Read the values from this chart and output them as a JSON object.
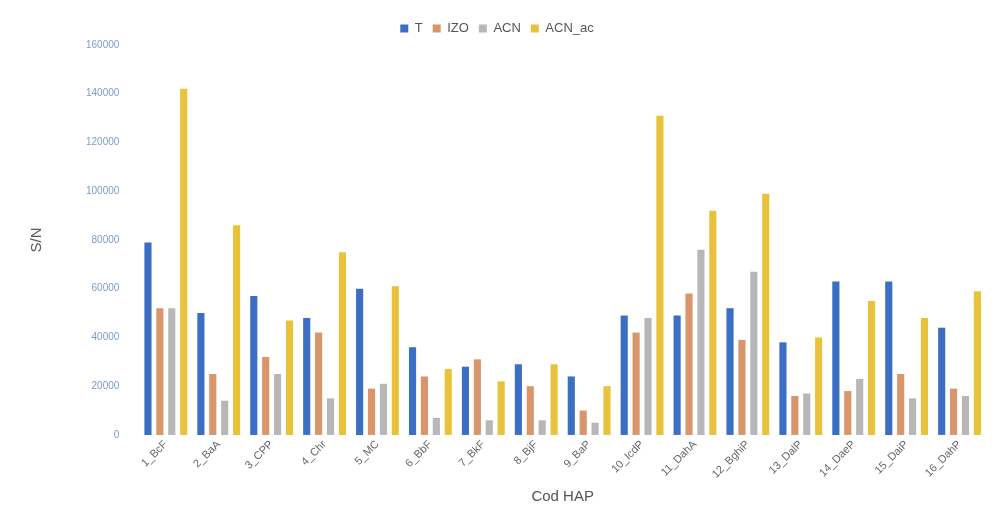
{
  "chart_data": {
    "type": "bar",
    "xlabel": "Cod HAP",
    "ylabel": "S/N",
    "categories": [
      "1_BcF",
      "2_BaA",
      "3_CPP",
      "4_Chr",
      "5_MC",
      "6_BbF",
      "7_BkF",
      "8_BjF",
      "9_BaP",
      "10_IcdP",
      "11_DahA",
      "12_BghiP",
      "13_DalP",
      "14_DaeP",
      "15_DaiP",
      "16_DahP"
    ],
    "series": [
      {
        "name": "T",
        "color": "#3a6fc4",
        "values": [
          79000,
          50000,
          57000,
          48000,
          60000,
          36000,
          28000,
          29000,
          24000,
          49000,
          49000,
          52000,
          38000,
          63000,
          63000,
          44000
        ]
      },
      {
        "name": "IZO",
        "color": "#d9966a",
        "values": [
          52000,
          25000,
          32000,
          42000,
          19000,
          24000,
          31000,
          20000,
          10000,
          42000,
          58000,
          39000,
          16000,
          18000,
          25000,
          19000
        ]
      },
      {
        "name": "ACN",
        "color": "#b7b7b7",
        "values": [
          52000,
          14000,
          25000,
          15000,
          21000,
          7000,
          6000,
          6000,
          5000,
          48000,
          76000,
          67000,
          17000,
          23000,
          15000,
          16000
        ]
      },
      {
        "name": "ACN_ac",
        "color": "#e8c33a",
        "values": [
          142000,
          86000,
          47000,
          75000,
          61000,
          27000,
          22000,
          29000,
          20000,
          131000,
          92000,
          99000,
          40000,
          55000,
          48000,
          59000
        ]
      }
    ],
    "ylim": [
      0,
      160000
    ],
    "yticks": [
      0,
      20000,
      40000,
      60000,
      80000,
      100000,
      120000,
      140000,
      160000
    ],
    "grid": false,
    "legend": "top"
  }
}
